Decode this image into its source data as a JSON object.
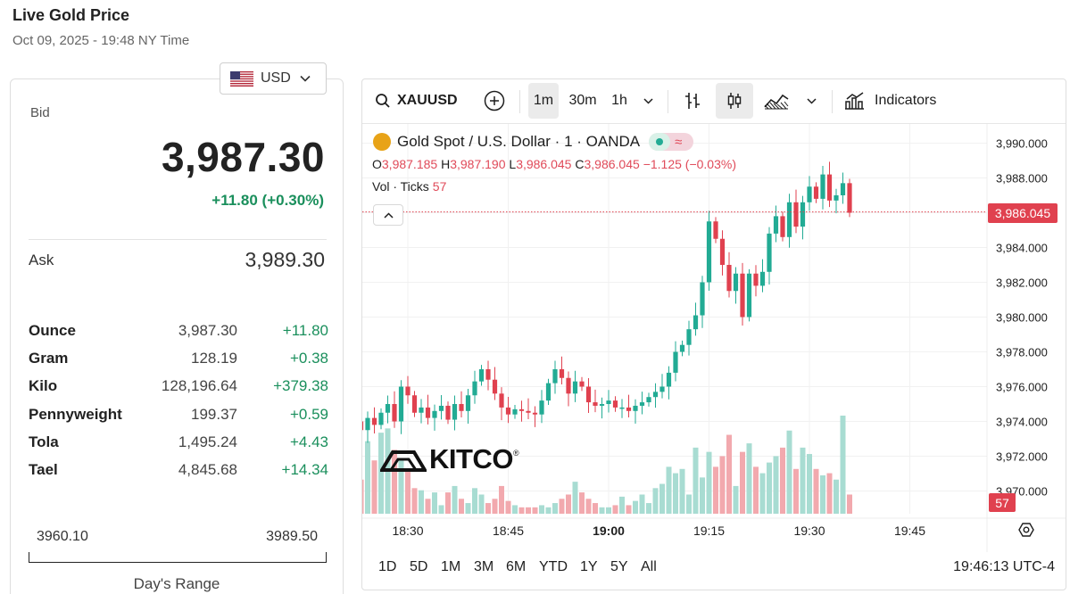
{
  "header": {
    "title": "Live Gold Price",
    "timestamp": "Oct 09, 2025 - 19:48 NY Time"
  },
  "currency": {
    "selected": "USD"
  },
  "quote": {
    "bid_label": "Bid",
    "bid": "3,987.30",
    "bid_change": "+11.80 (+0.30%)",
    "ask_label": "Ask",
    "ask": "3,989.30"
  },
  "units": [
    {
      "name": "Ounce",
      "value": "3,987.30",
      "change": "+11.80"
    },
    {
      "name": "Gram",
      "value": "128.19",
      "change": "+0.38"
    },
    {
      "name": "Kilo",
      "value": "128,196.64",
      "change": "+379.38"
    },
    {
      "name": "Pennyweight",
      "value": "199.37",
      "change": "+0.59"
    },
    {
      "name": "Tola",
      "value": "1,495.24",
      "change": "+4.43"
    },
    {
      "name": "Tael",
      "value": "4,845.68",
      "change": "+14.34"
    }
  ],
  "day_range": {
    "low": "3960.10",
    "high": "3989.50",
    "label": "Day's Range"
  },
  "toolbar": {
    "symbol": "XAUUSD",
    "intervals": [
      "1m",
      "30m",
      "1h"
    ],
    "active_interval": "1m",
    "indicators_label": "Indicators",
    "icons": [
      "search-icon",
      "plus-circle-icon",
      "chevron-down-icon",
      "bar-style-icon",
      "candles-icon",
      "area-icon",
      "chevron-down-icon",
      "indicators-icon"
    ]
  },
  "legend": {
    "title": "Gold Spot / U.S. Dollar · 1 · OANDA",
    "o_label": "O",
    "o": "3,987.185",
    "h_label": "H",
    "h": "3,987.190",
    "l_label": "L",
    "l": "3,986.045",
    "c_label": "C",
    "c": "3,986.045",
    "change": "−1.125 (−0.03%)",
    "vol_label": "Vol · Ticks",
    "vol": "57",
    "current_price_tag": "3,986.045",
    "volume_tag": "57"
  },
  "watermark": "KITCO",
  "colors": {
    "up": "#22ab94",
    "down": "#e0414f",
    "gain_text": "#1a8f5c",
    "gold": "#e8a317"
  },
  "chart_data": {
    "type": "candlestick",
    "ylim": [
      3968.6,
      3990.8
    ],
    "yticks": [
      "3,990.000",
      "3,988.000",
      "3,986.000",
      "3,984.000",
      "3,982.000",
      "3,980.000",
      "3,978.000",
      "3,976.000",
      "3,974.000",
      "3,972.000",
      "3,970.000"
    ],
    "ytick_values": [
      3990,
      3988,
      3986,
      3984,
      3982,
      3980,
      3978,
      3976,
      3974,
      3972,
      3970
    ],
    "xticks": [
      "18:30",
      "18:45",
      "19:00",
      "19:15",
      "19:30",
      "19:45"
    ],
    "xtick_minutes": [
      30,
      45,
      60,
      75,
      90,
      105
    ],
    "last_price": 3986.045,
    "start_minute": 16,
    "series_close": [
      3979.8,
      3973.0,
      3971.5,
      3972.5,
      3973.5,
      3972.8,
      3974.0,
      3973.5,
      3974.2,
      3973.8,
      3974.5,
      3975.0,
      3974.0,
      3976.0,
      3975.5,
      3974.5,
      3974.8,
      3974.2,
      3974.6,
      3974.9,
      3974.1,
      3975.0,
      3974.6,
      3975.5,
      3976.3,
      3977.0,
      3976.4,
      3975.6,
      3974.8,
      3974.4,
      3974.7,
      3974.6,
      3974.5,
      3974.4,
      3975.2,
      3976.2,
      3977.0,
      3976.5,
      3975.6,
      3976.3,
      3976.0,
      3975.1,
      3974.9,
      3975.0,
      3975.2,
      3974.8,
      3974.8,
      3974.6,
      3974.9,
      3975.1,
      3975.4,
      3975.7,
      3976.0,
      3976.8,
      3978.0,
      3978.4,
      3979.3,
      3980.1,
      3982.0,
      3985.5,
      3984.5,
      3983.0,
      3981.5,
      3982.5,
      3980.0,
      3982.5,
      3981.8,
      3982.6,
      3984.8,
      3985.8,
      3984.6,
      3986.6,
      3985.2,
      3986.6,
      3987.5,
      3986.8,
      3988.2,
      3986.7,
      3987.0,
      3987.7,
      3986.0
    ],
    "volume": [
      33,
      12,
      22,
      9,
      25,
      19,
      20,
      16,
      34,
      25,
      38,
      40,
      30,
      25,
      20,
      12,
      11,
      7,
      10,
      4,
      10,
      13,
      7,
      5,
      12,
      9,
      5,
      7,
      13,
      6,
      4,
      3,
      3,
      3,
      4,
      3,
      5,
      7,
      9,
      15,
      10,
      7,
      5,
      3,
      3,
      4,
      8,
      4,
      6,
      9,
      5,
      12,
      14,
      22,
      19,
      21,
      9,
      31,
      17,
      29,
      22,
      27,
      37,
      13,
      29,
      33,
      22,
      19,
      24,
      27,
      31,
      39,
      21,
      31,
      28,
      21,
      18,
      19,
      16,
      46,
      9
    ]
  },
  "bottom": {
    "ranges": [
      "1D",
      "5D",
      "1M",
      "3M",
      "6M",
      "YTD",
      "1Y",
      "5Y",
      "All"
    ],
    "clock": "19:46:13 UTC-4"
  }
}
